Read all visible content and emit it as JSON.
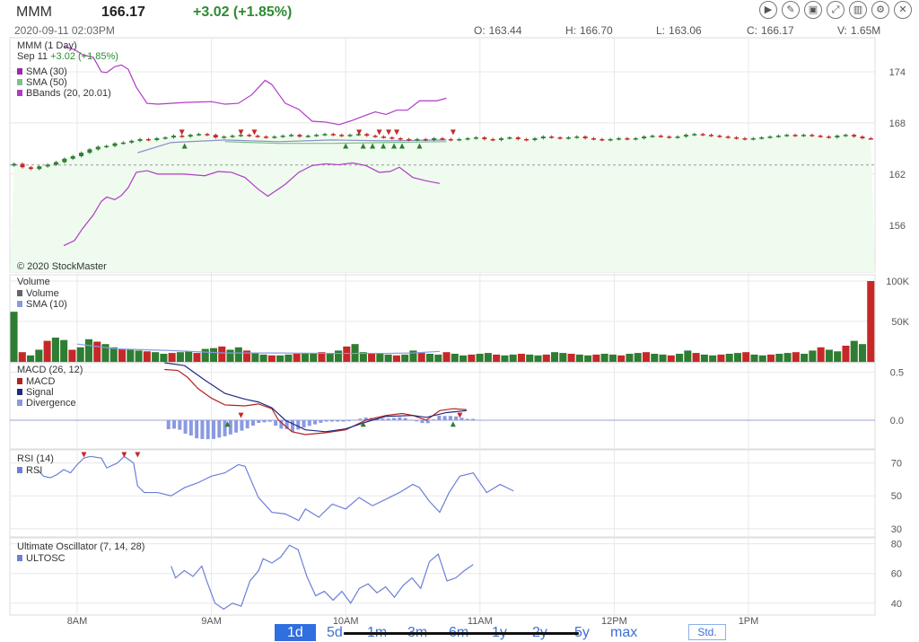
{
  "header": {
    "symbol": "MMM",
    "price": "166.17",
    "change": "+3.02 (+1.85%)",
    "datetime": "2020-09-11 02:03PM",
    "ohlc": [
      {
        "k": "O:",
        "v": "163.44"
      },
      {
        "k": "H:",
        "v": "166.70"
      },
      {
        "k": "L:",
        "v": "163.06"
      },
      {
        "k": "C:",
        "v": "166.17"
      },
      {
        "k": "V:",
        "v": "1.65M"
      }
    ]
  },
  "toolbar": [
    "play-icon",
    "draw-icon",
    "image-icon",
    "fullscreen-icon",
    "chart-icon",
    "gear-icon",
    "close-icon"
  ],
  "watermark": "© 2020 StockMaster",
  "colors": {
    "up": "#2e7d32",
    "down": "#c62828",
    "bband": "#b03ac8",
    "sma30": "#9c27b0",
    "sma50": "#7fbf8f",
    "macd": "#b22222",
    "signal": "#1f2a80",
    "div": "#8a9ae0",
    "rsi": "#6d7fd8",
    "ultosc": "#6d7fd8"
  },
  "chart_data": [
    {
      "type": "candlestick",
      "title": "MMM (1 Day)",
      "subtitle_date": "Sep 11",
      "subtitle_change": "+3.02 (+1.85%)",
      "legend": [
        {
          "name": "SMA (30)",
          "color": "#9c27b0"
        },
        {
          "name": "SMA (50)",
          "color": "#7fbf8f"
        },
        {
          "name": "BBands (20, 20.01)",
          "color": "#b03ac8"
        }
      ],
      "y_ticks": [
        156,
        162,
        168,
        174
      ],
      "y_range": [
        150.5,
        178
      ],
      "x_ticks": [
        "8AM",
        "9AM",
        "10AM",
        "11AM",
        "12PM",
        "1PM"
      ],
      "close": [
        163.2,
        162.8,
        162.6,
        162.9,
        163.1,
        163.4,
        163.8,
        164.1,
        164.5,
        164.9,
        165.2,
        165.3,
        165.6,
        165.7,
        165.9,
        166.1,
        166.0,
        166.2,
        166.3,
        166.5,
        166.4,
        166.6,
        166.7,
        166.6,
        166.3,
        166.4,
        166.5,
        166.6,
        166.5,
        166.4,
        166.3,
        166.4,
        166.5,
        166.6,
        166.4,
        166.5,
        166.6,
        166.7,
        166.6,
        166.5,
        166.6,
        166.7,
        166.5,
        166.4,
        166.3,
        166.2,
        166.1,
        166.0,
        166.1,
        166.0,
        166.2,
        166.1,
        166.0,
        166.1,
        166.2,
        166.3,
        166.1,
        166.0,
        166.2,
        166.3,
        166.1,
        166.0,
        166.2,
        166.4,
        166.3,
        166.2,
        166.3,
        166.4,
        166.2,
        166.1,
        166.0,
        166.1,
        166.2,
        166.1,
        166.2,
        166.4,
        166.5,
        166.4,
        166.3,
        166.4,
        166.6,
        166.7,
        166.6,
        166.5,
        166.4,
        166.3,
        166.2,
        166.1,
        166.2,
        166.3,
        166.4,
        166.5,
        166.6,
        166.5,
        166.6,
        166.5,
        166.4,
        166.3,
        166.5,
        166.6,
        166.4,
        166.2,
        166.17
      ],
      "reference_line": 163.06,
      "bband_upper": [
        {
          "t": 0.4,
          "v": 177.0
        },
        {
          "t": 0.48,
          "v": 176.6
        },
        {
          "t": 0.54,
          "v": 176.0
        },
        {
          "t": 0.62,
          "v": 175.7
        },
        {
          "t": 0.68,
          "v": 174.0
        },
        {
          "t": 0.72,
          "v": 173.9
        },
        {
          "t": 0.78,
          "v": 174.6
        },
        {
          "t": 0.83,
          "v": 174.8
        },
        {
          "t": 0.88,
          "v": 174.3
        },
        {
          "t": 0.94,
          "v": 172.2
        },
        {
          "t": 1.02,
          "v": 170.3
        },
        {
          "t": 1.1,
          "v": 170.2
        },
        {
          "t": 1.3,
          "v": 170.4
        },
        {
          "t": 1.5,
          "v": 170.5
        },
        {
          "t": 1.6,
          "v": 170.2
        },
        {
          "t": 1.7,
          "v": 170.3
        },
        {
          "t": 1.8,
          "v": 171.3
        },
        {
          "t": 1.9,
          "v": 173.0
        },
        {
          "t": 1.95,
          "v": 172.5
        },
        {
          "t": 2.05,
          "v": 170.3
        },
        {
          "t": 2.15,
          "v": 169.6
        },
        {
          "t": 2.25,
          "v": 168.2
        },
        {
          "t": 2.35,
          "v": 168.1
        },
        {
          "t": 2.45,
          "v": 167.8
        },
        {
          "t": 2.55,
          "v": 168.3
        },
        {
          "t": 2.65,
          "v": 168.9
        },
        {
          "t": 2.72,
          "v": 169.3
        },
        {
          "t": 2.8,
          "v": 169.0
        },
        {
          "t": 2.88,
          "v": 169.5
        },
        {
          "t": 2.96,
          "v": 169.5
        },
        {
          "t": 3.05,
          "v": 170.6
        },
        {
          "t": 3.18,
          "v": 170.6
        },
        {
          "t": 3.25,
          "v": 170.9
        }
      ],
      "bband_lower": [
        {
          "t": 0.4,
          "v": 153.6
        },
        {
          "t": 0.48,
          "v": 154.2
        },
        {
          "t": 0.54,
          "v": 155.6
        },
        {
          "t": 0.62,
          "v": 157.2
        },
        {
          "t": 0.68,
          "v": 158.8
        },
        {
          "t": 0.72,
          "v": 159.3
        },
        {
          "t": 0.78,
          "v": 159.0
        },
        {
          "t": 0.83,
          "v": 159.5
        },
        {
          "t": 0.88,
          "v": 160.4
        },
        {
          "t": 0.94,
          "v": 162.2
        },
        {
          "t": 1.02,
          "v": 162.4
        },
        {
          "t": 1.1,
          "v": 162.0
        },
        {
          "t": 1.3,
          "v": 162.0
        },
        {
          "t": 1.45,
          "v": 161.8
        },
        {
          "t": 1.55,
          "v": 162.3
        },
        {
          "t": 1.65,
          "v": 162.2
        },
        {
          "t": 1.75,
          "v": 161.6
        },
        {
          "t": 1.85,
          "v": 160.2
        },
        {
          "t": 1.92,
          "v": 159.4
        },
        {
          "t": 2.05,
          "v": 160.8
        },
        {
          "t": 2.15,
          "v": 162.2
        },
        {
          "t": 2.25,
          "v": 163.0
        },
        {
          "t": 2.35,
          "v": 163.2
        },
        {
          "t": 2.45,
          "v": 163.1
        },
        {
          "t": 2.55,
          "v": 163.3
        },
        {
          "t": 2.65,
          "v": 163.0
        },
        {
          "t": 2.75,
          "v": 162.2
        },
        {
          "t": 2.83,
          "v": 162.3
        },
        {
          "t": 2.9,
          "v": 162.8
        },
        {
          "t": 3.0,
          "v": 161.6
        },
        {
          "t": 3.1,
          "v": 161.2
        },
        {
          "t": 3.2,
          "v": 160.9
        }
      ],
      "sma30": [
        {
          "t": 0.95,
          "v": 164.5
        },
        {
          "t": 1.2,
          "v": 165.7
        },
        {
          "t": 1.6,
          "v": 166.0
        },
        {
          "t": 2.0,
          "v": 165.8
        },
        {
          "t": 2.4,
          "v": 166.0
        },
        {
          "t": 2.8,
          "v": 165.9
        },
        {
          "t": 3.25,
          "v": 166.0
        }
      ],
      "sma50": [
        {
          "t": 1.6,
          "v": 165.8
        },
        {
          "t": 2.0,
          "v": 165.6
        },
        {
          "t": 2.4,
          "v": 165.6
        },
        {
          "t": 2.8,
          "v": 165.7
        },
        {
          "t": 3.25,
          "v": 165.8
        }
      ],
      "sell_signals": [
        1.28,
        1.72,
        1.82,
        2.6,
        2.75,
        2.82,
        2.88,
        3.3
      ],
      "buy_signals": [
        1.3,
        2.5,
        2.63,
        2.7,
        2.78,
        2.86,
        2.92,
        3.05
      ]
    },
    {
      "type": "bar",
      "title": "Volume",
      "legend": [
        {
          "name": "Volume",
          "color": "#666666"
        },
        {
          "name": "SMA (10)",
          "color": "#8a9ae0"
        }
      ],
      "y_ticks": [
        "50K",
        "100K"
      ],
      "y_max": 100000,
      "values": [
        62000,
        12000,
        8000,
        15000,
        26000,
        30000,
        27000,
        15000,
        18000,
        28000,
        25000,
        22000,
        18000,
        16000,
        15000,
        14000,
        13000,
        12000,
        10000,
        11000,
        12000,
        13000,
        11000,
        16000,
        17000,
        19000,
        15000,
        18000,
        14000,
        11000,
        9000,
        8000,
        8000,
        9000,
        10000,
        11000,
        10000,
        12000,
        11000,
        14000,
        19000,
        22000,
        12000,
        11000,
        10000,
        9000,
        8000,
        9000,
        14000,
        11000,
        10000,
        9000,
        12000,
        10000,
        8000,
        9000,
        10000,
        11000,
        9000,
        8000,
        9000,
        10000,
        9000,
        8000,
        9000,
        12000,
        11000,
        10000,
        9000,
        8000,
        9000,
        10000,
        9000,
        8000,
        10000,
        11000,
        12000,
        10000,
        9000,
        8000,
        10000,
        14000,
        11000,
        9000,
        8000,
        9000,
        10000,
        11000,
        12000,
        9000,
        8000,
        9000,
        10000,
        11000,
        12000,
        10000,
        14000,
        18000,
        15000,
        13000,
        20000,
        26000,
        22000,
        100000
      ],
      "sma10": [
        {
          "t": 0.5,
          "v": 22000
        },
        {
          "t": 0.6,
          "v": 20000
        },
        {
          "t": 0.8,
          "v": 16000
        },
        {
          "t": 1.0,
          "v": 15000
        },
        {
          "t": 1.2,
          "v": 14000
        },
        {
          "t": 1.6,
          "v": 11000
        },
        {
          "t": 2.0,
          "v": 11000
        },
        {
          "t": 2.4,
          "v": 10500
        },
        {
          "t": 2.8,
          "v": 10500
        },
        {
          "t": 3.0,
          "v": 11000
        },
        {
          "t": 3.2,
          "v": 13000
        }
      ]
    },
    {
      "type": "line",
      "title": "MACD (26, 12)",
      "legend": [
        {
          "name": "MACD",
          "color": "#b22222"
        },
        {
          "name": "Signal",
          "color": "#1f2a80"
        },
        {
          "name": "Divergence",
          "color": "#8a9ae0"
        }
      ],
      "y_ticks": [
        "0.0",
        "0.5"
      ],
      "y_range": [
        -0.3,
        0.6
      ],
      "macd": [
        {
          "t": 1.15,
          "v": 0.53
        },
        {
          "t": 1.25,
          "v": 0.52
        },
        {
          "t": 1.32,
          "v": 0.45
        },
        {
          "t": 1.4,
          "v": 0.33
        },
        {
          "t": 1.5,
          "v": 0.23
        },
        {
          "t": 1.6,
          "v": 0.16
        },
        {
          "t": 1.75,
          "v": 0.15
        },
        {
          "t": 1.85,
          "v": 0.17
        },
        {
          "t": 1.95,
          "v": 0.12
        },
        {
          "t": 2.0,
          "v": 0.0
        },
        {
          "t": 2.1,
          "v": -0.12
        },
        {
          "t": 2.2,
          "v": -0.15
        },
        {
          "t": 2.35,
          "v": -0.13
        },
        {
          "t": 2.5,
          "v": -0.1
        },
        {
          "t": 2.65,
          "v": 0.0
        },
        {
          "t": 2.8,
          "v": 0.05
        },
        {
          "t": 2.92,
          "v": 0.07
        },
        {
          "t": 3.0,
          "v": 0.05
        },
        {
          "t": 3.1,
          "v": 0.0
        },
        {
          "t": 3.2,
          "v": 0.1
        },
        {
          "t": 3.3,
          "v": 0.12
        },
        {
          "t": 3.4,
          "v": 0.11
        }
      ],
      "signal": [
        {
          "t": 1.15,
          "v": 0.6
        },
        {
          "t": 1.3,
          "v": 0.57
        },
        {
          "t": 1.45,
          "v": 0.42
        },
        {
          "t": 1.6,
          "v": 0.28
        },
        {
          "t": 1.75,
          "v": 0.22
        },
        {
          "t": 1.85,
          "v": 0.19
        },
        {
          "t": 1.95,
          "v": 0.13
        },
        {
          "t": 2.05,
          "v": 0.0
        },
        {
          "t": 2.2,
          "v": -0.1
        },
        {
          "t": 2.35,
          "v": -0.12
        },
        {
          "t": 2.5,
          "v": -0.09
        },
        {
          "t": 2.65,
          "v": -0.02
        },
        {
          "t": 2.8,
          "v": 0.04
        },
        {
          "t": 3.0,
          "v": 0.05
        },
        {
          "t": 3.1,
          "v": 0.03
        },
        {
          "t": 3.25,
          "v": 0.08
        },
        {
          "t": 3.4,
          "v": 0.1
        }
      ],
      "sell_signals": [
        1.72,
        3.35
      ],
      "buy_signals": [
        1.62,
        2.63,
        3.3
      ]
    },
    {
      "type": "line",
      "title": "RSI (14)",
      "legend": [
        {
          "name": "RSI",
          "color": "#6d7fd8"
        }
      ],
      "y_ticks": [
        "30",
        "50",
        "70"
      ],
      "y_range": [
        25,
        78
      ],
      "values": [
        {
          "t": 0.2,
          "v": 66
        },
        {
          "t": 0.25,
          "v": 62
        },
        {
          "t": 0.3,
          "v": 61
        },
        {
          "t": 0.35,
          "v": 63
        },
        {
          "t": 0.4,
          "v": 66
        },
        {
          "t": 0.45,
          "v": 64
        },
        {
          "t": 0.5,
          "v": 69
        },
        {
          "t": 0.55,
          "v": 73
        },
        {
          "t": 0.6,
          "v": 74
        },
        {
          "t": 0.68,
          "v": 73
        },
        {
          "t": 0.72,
          "v": 67
        },
        {
          "t": 0.8,
          "v": 70
        },
        {
          "t": 0.85,
          "v": 74
        },
        {
          "t": 0.92,
          "v": 70
        },
        {
          "t": 0.95,
          "v": 56
        },
        {
          "t": 1.0,
          "v": 52
        },
        {
          "t": 1.1,
          "v": 52
        },
        {
          "t": 1.2,
          "v": 50
        },
        {
          "t": 1.3,
          "v": 55
        },
        {
          "t": 1.4,
          "v": 58
        },
        {
          "t": 1.5,
          "v": 62
        },
        {
          "t": 1.6,
          "v": 64
        },
        {
          "t": 1.7,
          "v": 69
        },
        {
          "t": 1.75,
          "v": 68
        },
        {
          "t": 1.85,
          "v": 49
        },
        {
          "t": 1.95,
          "v": 40
        },
        {
          "t": 2.05,
          "v": 39
        },
        {
          "t": 2.15,
          "v": 35
        },
        {
          "t": 2.2,
          "v": 42
        },
        {
          "t": 2.3,
          "v": 37
        },
        {
          "t": 2.4,
          "v": 45
        },
        {
          "t": 2.5,
          "v": 42
        },
        {
          "t": 2.6,
          "v": 49
        },
        {
          "t": 2.7,
          "v": 44
        },
        {
          "t": 2.8,
          "v": 48
        },
        {
          "t": 2.9,
          "v": 52
        },
        {
          "t": 3.0,
          "v": 57
        },
        {
          "t": 3.05,
          "v": 55
        },
        {
          "t": 3.12,
          "v": 47
        },
        {
          "t": 3.2,
          "v": 40
        },
        {
          "t": 3.27,
          "v": 52
        },
        {
          "t": 3.35,
          "v": 62
        },
        {
          "t": 3.45,
          "v": 64
        },
        {
          "t": 3.55,
          "v": 52
        },
        {
          "t": 3.65,
          "v": 57
        },
        {
          "t": 3.75,
          "v": 53
        }
      ]
    },
    {
      "type": "line",
      "title": "Ultimate Oscillator (7, 14, 28)",
      "legend": [
        {
          "name": "ULTOSC",
          "color": "#6d7fd8"
        }
      ],
      "y_ticks": [
        "40",
        "60",
        "80"
      ],
      "y_range": [
        32,
        84
      ],
      "values": [
        {
          "t": 0.95,
          "v": 65
        },
        {
          "t": 1.0,
          "v": 57
        },
        {
          "t": 1.1,
          "v": 62
        },
        {
          "t": 1.2,
          "v": 58
        },
        {
          "t": 1.3,
          "v": 65
        },
        {
          "t": 1.35,
          "v": 56
        },
        {
          "t": 1.45,
          "v": 40
        },
        {
          "t": 1.55,
          "v": 36
        },
        {
          "t": 1.65,
          "v": 40
        },
        {
          "t": 1.75,
          "v": 38
        },
        {
          "t": 1.85,
          "v": 55
        },
        {
          "t": 1.95,
          "v": 62
        },
        {
          "t": 2.0,
          "v": 70
        },
        {
          "t": 2.1,
          "v": 67
        },
        {
          "t": 2.2,
          "v": 71
        },
        {
          "t": 2.3,
          "v": 79
        },
        {
          "t": 2.4,
          "v": 76
        },
        {
          "t": 2.5,
          "v": 58
        },
        {
          "t": 2.6,
          "v": 45
        },
        {
          "t": 2.7,
          "v": 48
        },
        {
          "t": 2.8,
          "v": 42
        },
        {
          "t": 2.9,
          "v": 48
        },
        {
          "t": 3.0,
          "v": 40
        },
        {
          "t": 3.1,
          "v": 50
        },
        {
          "t": 3.2,
          "v": 53
        },
        {
          "t": 3.3,
          "v": 47
        },
        {
          "t": 3.4,
          "v": 51
        },
        {
          "t": 3.5,
          "v": 44
        },
        {
          "t": 3.6,
          "v": 52
        },
        {
          "t": 3.7,
          "v": 57
        },
        {
          "t": 3.8,
          "v": 50
        },
        {
          "t": 3.9,
          "v": 68
        },
        {
          "t": 4.0,
          "v": 73
        },
        {
          "t": 4.1,
          "v": 55
        },
        {
          "t": 4.2,
          "v": 57
        },
        {
          "t": 4.3,
          "v": 62
        },
        {
          "t": 4.4,
          "v": 66
        }
      ]
    }
  ],
  "ranges": [
    "1d",
    "5d",
    "1m",
    "3m",
    "6m",
    "1y",
    "2y",
    "5y",
    "max"
  ],
  "selected_range": "1d",
  "std_label": "Std."
}
